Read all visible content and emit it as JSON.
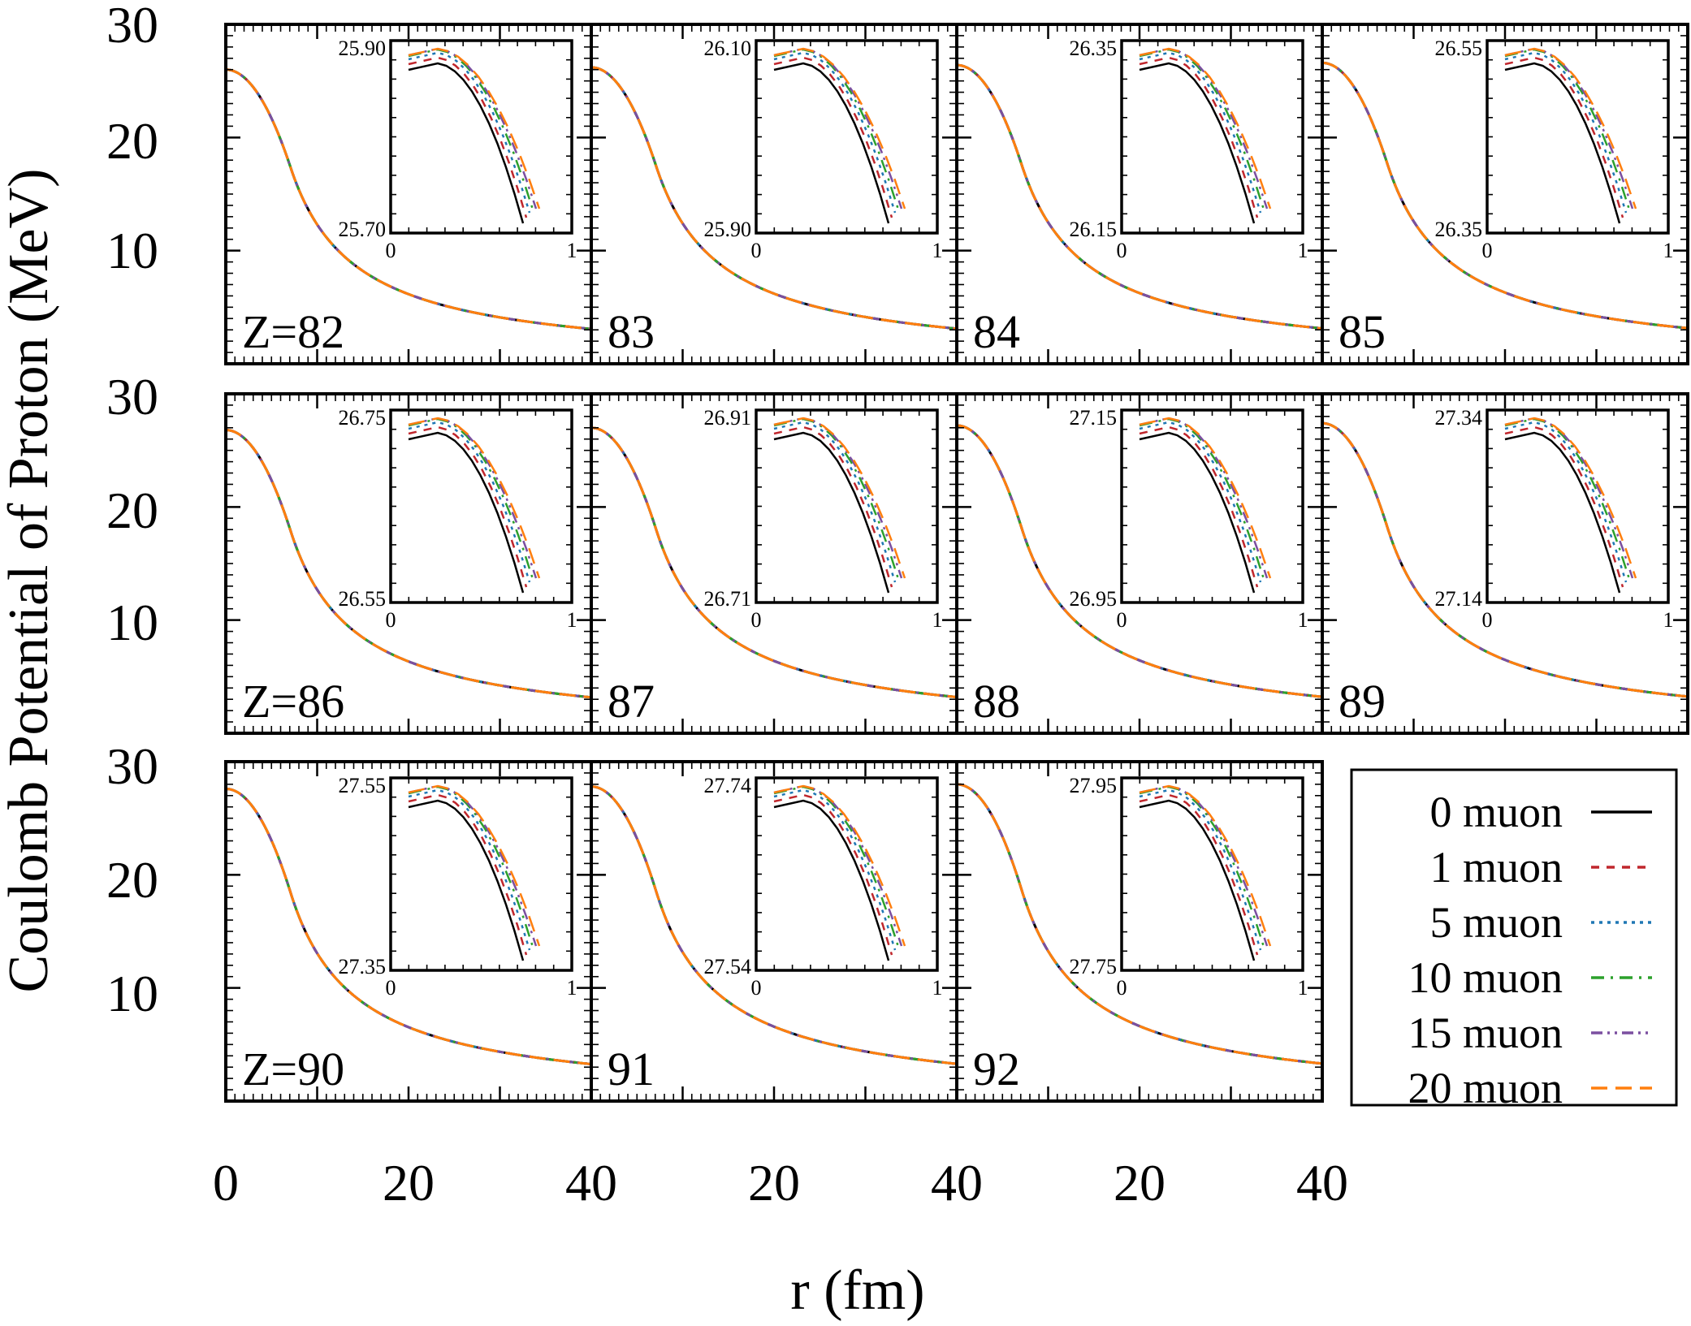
{
  "figure": {
    "ylabel": "Coulomb Potential of Proton (MeV)",
    "xlabel": "r (fm)",
    "y_ticks": [
      "30",
      "20",
      "10"
    ],
    "x_ticks": [
      "0",
      "20",
      "40"
    ]
  },
  "chart_data": {
    "type": "line",
    "title": "",
    "xlabel": "r (fm)",
    "ylabel": "Coulomb Potential of Proton (MeV)",
    "xlim": [
      0,
      40
    ],
    "ylim": [
      0,
      30
    ],
    "legend": {
      "placement": "bottom-right",
      "entries": [
        {
          "label": "0 muon",
          "color": "#000000",
          "dash": "solid"
        },
        {
          "label": "1 muon",
          "color": "#c0272d",
          "dash": "dashed"
        },
        {
          "label": "5 muon",
          "color": "#1f77b4",
          "dash": "dotted"
        },
        {
          "label": "10 muon",
          "color": "#2ca02c",
          "dash": "dash-dot"
        },
        {
          "label": "15 muon",
          "color": "#7b4fa0",
          "dash": "dash-dot-dot"
        },
        {
          "label": "20 muon",
          "color": "#ff7f0e",
          "dash": "long-dashed"
        }
      ]
    },
    "inset": {
      "xlim": [
        0,
        1
      ],
      "x_ticks": [
        "0",
        "1"
      ]
    },
    "panels": [
      {
        "label": "Z=82",
        "Z": 82,
        "V0": 26.0,
        "inset_y_top": "25.90",
        "inset_y_bottom": "25.70"
      },
      {
        "label": "83",
        "Z": 83,
        "V0": 26.2,
        "inset_y_top": "26.10",
        "inset_y_bottom": "25.90"
      },
      {
        "label": "84",
        "Z": 84,
        "V0": 26.4,
        "inset_y_top": "26.35",
        "inset_y_bottom": "26.15"
      },
      {
        "label": "85",
        "Z": 85,
        "V0": 26.6,
        "inset_y_top": "26.55",
        "inset_y_bottom": "26.35"
      },
      {
        "label": "Z=86",
        "Z": 86,
        "V0": 26.8,
        "inset_y_top": "26.75",
        "inset_y_bottom": "26.55"
      },
      {
        "label": "87",
        "Z": 87,
        "V0": 27.0,
        "inset_y_top": "26.91",
        "inset_y_bottom": "26.71"
      },
      {
        "label": "88",
        "Z": 88,
        "V0": 27.2,
        "inset_y_top": "27.15",
        "inset_y_bottom": "26.95"
      },
      {
        "label": "89",
        "Z": 89,
        "V0": 27.4,
        "inset_y_top": "27.34",
        "inset_y_bottom": "27.14"
      },
      {
        "label": "Z=90",
        "Z": 90,
        "V0": 27.6,
        "inset_y_top": "27.55",
        "inset_y_bottom": "27.35"
      },
      {
        "label": "91",
        "Z": 91,
        "V0": 27.8,
        "inset_y_top": "27.74",
        "inset_y_bottom": "27.54"
      },
      {
        "label": "92",
        "Z": 92,
        "V0": 28.0,
        "inset_y_top": "27.95",
        "inset_y_bottom": "27.75"
      }
    ],
    "curve_samples": {
      "r": [
        0,
        2,
        4,
        6,
        8,
        10,
        12,
        15,
        20,
        25,
        30,
        35,
        40
      ],
      "V_Z82": [
        26.0,
        25.5,
        23.4,
        19.5,
        14.9,
        11.9,
        9.9,
        7.9,
        5.9,
        4.7,
        3.9,
        3.4,
        2.9
      ]
    }
  }
}
